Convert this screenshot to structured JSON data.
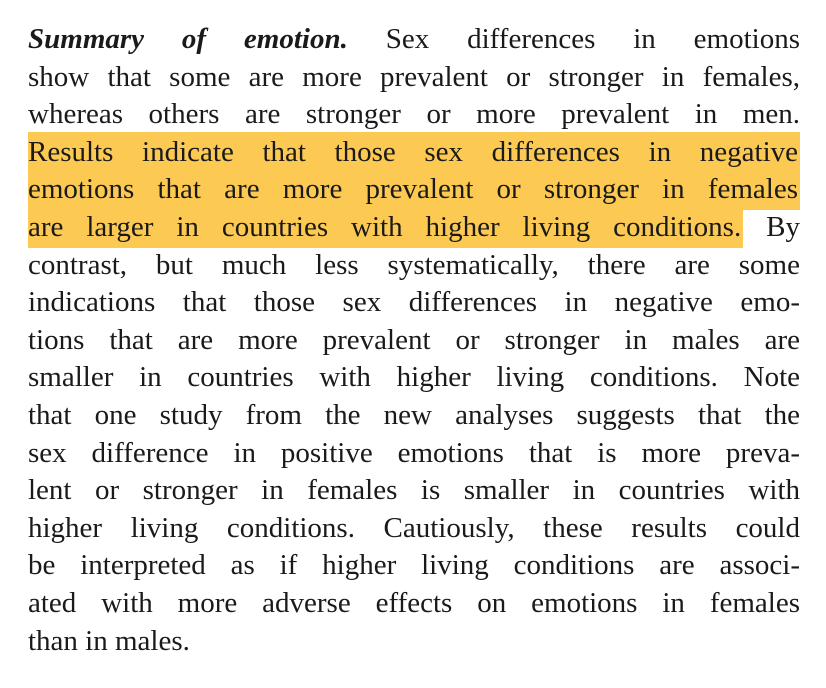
{
  "paragraph": {
    "lines": [
      [
        {
          "text": "Summary of emotion.",
          "emphasis": true
        },
        {
          "text": " Sex differences in emotions"
        }
      ],
      [
        {
          "text": "show that some are more prevalent or stronger in females,"
        }
      ],
      [
        {
          "text": "whereas others are stronger or more prevalent in men."
        }
      ],
      [
        {
          "text": "Results indicate that those sex differences in negative",
          "highlight": true
        }
      ],
      [
        {
          "text": "emotions that are more prevalent or stronger in females",
          "highlight": true
        }
      ],
      [
        {
          "text": "are larger in countries with higher living conditions.",
          "highlight": true
        },
        {
          "text": " By"
        }
      ],
      [
        {
          "text": "contrast, but much less systematically, there are some"
        }
      ],
      [
        {
          "text": "indications that those sex differences in negative emo-"
        }
      ],
      [
        {
          "text": "tions that are more prevalent or stronger in males are"
        }
      ],
      [
        {
          "text": "smaller in countries with higher living conditions. Note"
        }
      ],
      [
        {
          "text": "that one study from the new analyses suggests that the"
        }
      ],
      [
        {
          "text": "sex difference in positive emotions that is more preva-"
        }
      ],
      [
        {
          "text": "lent or stronger in females is smaller in countries with"
        }
      ],
      [
        {
          "text": "higher living conditions. Cautiously, these results could"
        }
      ],
      [
        {
          "text": "be interpreted as if higher living conditions are associ-"
        }
      ],
      [
        {
          "text": "ated with more adverse effects on emotions in females"
        }
      ],
      [
        {
          "text": "than in males."
        }
      ]
    ]
  }
}
